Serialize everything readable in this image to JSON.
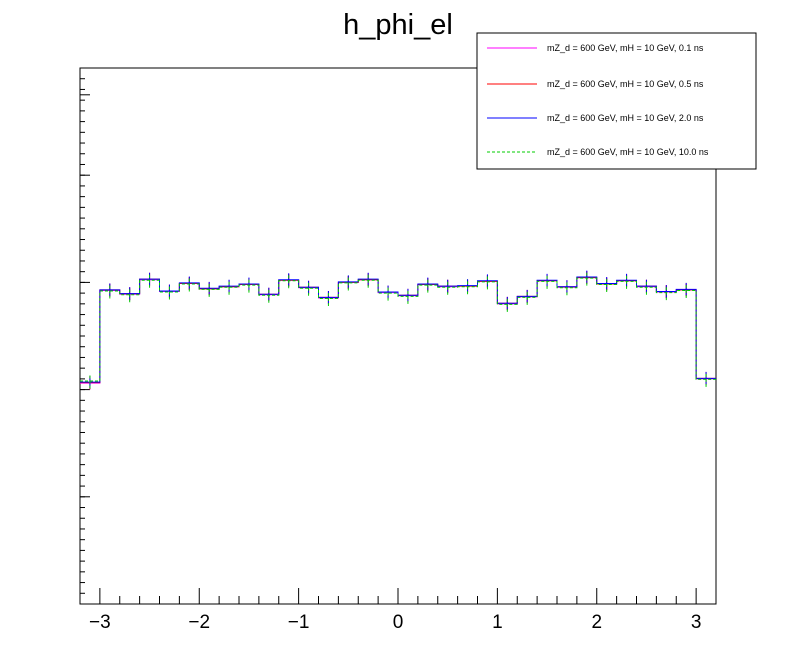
{
  "chart_data": {
    "type": "line",
    "title": "h_phi_el",
    "xlabel": "",
    "ylabel": "",
    "xlim": [
      -3.2,
      3.2
    ],
    "ylim": [
      0,
      1.0
    ],
    "x_ticks": [
      -3,
      -2,
      -1,
      0,
      1,
      2,
      3
    ],
    "x_tick_labels": [
      "−3",
      "−2",
      "−1",
      "0",
      "1",
      "2",
      "3"
    ],
    "y_major_ticks": [
      0.2,
      0.4,
      0.6,
      0.8,
      0.95
    ],
    "legend_position": "top-right",
    "bin_edges": [
      -3.2,
      -3.0,
      -2.8,
      -2.6,
      -2.4,
      -2.2,
      -2.0,
      -1.8,
      -1.6,
      -1.4,
      -1.2,
      -1.0,
      -0.8,
      -0.6,
      -0.4,
      -0.2,
      0.0,
      0.2,
      0.4,
      0.6,
      0.8,
      1.0,
      1.2,
      1.4,
      1.6,
      1.8,
      2.0,
      2.2,
      2.4,
      2.6,
      2.8,
      3.0,
      3.2
    ],
    "series": [
      {
        "name": "mZ_d = 600 GeV, mH = 10 GeV, 0.1 ns",
        "color": "#ff00ff",
        "style": "solid",
        "values": [
          0.412,
          0.585,
          0.578,
          0.605,
          0.583,
          0.598,
          0.588,
          0.592,
          0.596,
          0.577,
          0.604,
          0.59,
          0.571,
          0.6,
          0.605,
          0.581,
          0.575,
          0.596,
          0.592,
          0.593,
          0.602,
          0.56,
          0.573,
          0.603,
          0.591,
          0.609,
          0.597,
          0.603,
          0.592,
          0.582,
          0.586,
          0.42
        ],
        "errors": [
          0.012,
          0.012,
          0.012,
          0.012,
          0.012,
          0.012,
          0.012,
          0.012,
          0.012,
          0.012,
          0.012,
          0.012,
          0.012,
          0.012,
          0.012,
          0.012,
          0.012,
          0.012,
          0.012,
          0.012,
          0.012,
          0.012,
          0.012,
          0.012,
          0.012,
          0.012,
          0.012,
          0.012,
          0.012,
          0.012,
          0.012,
          0.012
        ]
      },
      {
        "name": "mZ_d = 600 GeV, mH = 10 GeV, 0.5 ns",
        "color": "#ff0000",
        "style": "solid",
        "values": [
          0.413,
          0.586,
          0.579,
          0.606,
          0.584,
          0.598,
          0.588,
          0.592,
          0.596,
          0.578,
          0.604,
          0.591,
          0.572,
          0.6,
          0.605,
          0.582,
          0.576,
          0.596,
          0.593,
          0.593,
          0.602,
          0.561,
          0.574,
          0.603,
          0.592,
          0.609,
          0.597,
          0.603,
          0.593,
          0.583,
          0.586,
          0.421
        ],
        "errors": [
          0.012,
          0.012,
          0.012,
          0.012,
          0.012,
          0.012,
          0.012,
          0.012,
          0.012,
          0.012,
          0.012,
          0.012,
          0.012,
          0.012,
          0.012,
          0.012,
          0.012,
          0.012,
          0.012,
          0.012,
          0.012,
          0.012,
          0.012,
          0.012,
          0.012,
          0.012,
          0.012,
          0.012,
          0.012,
          0.012,
          0.012,
          0.012
        ]
      },
      {
        "name": "mZ_d = 600 GeV, mH = 10 GeV, 2.0 ns",
        "color": "#0000ff",
        "style": "solid",
        "values": [
          0.414,
          0.586,
          0.579,
          0.606,
          0.584,
          0.599,
          0.589,
          0.593,
          0.597,
          0.578,
          0.605,
          0.591,
          0.572,
          0.601,
          0.606,
          0.582,
          0.576,
          0.597,
          0.593,
          0.594,
          0.603,
          0.561,
          0.574,
          0.604,
          0.592,
          0.61,
          0.598,
          0.604,
          0.593,
          0.583,
          0.587,
          0.421
        ],
        "errors": [
          0.012,
          0.012,
          0.012,
          0.012,
          0.012,
          0.012,
          0.012,
          0.012,
          0.012,
          0.012,
          0.012,
          0.012,
          0.012,
          0.012,
          0.012,
          0.012,
          0.012,
          0.012,
          0.012,
          0.012,
          0.012,
          0.012,
          0.012,
          0.012,
          0.012,
          0.012,
          0.012,
          0.012,
          0.012,
          0.012,
          0.012,
          0.012
        ]
      },
      {
        "name": "mZ_d = 600 GeV, mH = 10 GeV, 10.0 ns",
        "color": "#00cc00",
        "style": "dashed",
        "values": [
          0.416,
          0.584,
          0.577,
          0.604,
          0.582,
          0.597,
          0.587,
          0.591,
          0.595,
          0.576,
          0.603,
          0.589,
          0.57,
          0.599,
          0.604,
          0.58,
          0.574,
          0.595,
          0.591,
          0.592,
          0.601,
          0.559,
          0.572,
          0.602,
          0.59,
          0.608,
          0.596,
          0.602,
          0.591,
          0.581,
          0.585,
          0.419
        ],
        "errors": [
          0.014,
          0.014,
          0.014,
          0.014,
          0.014,
          0.014,
          0.014,
          0.014,
          0.014,
          0.014,
          0.014,
          0.014,
          0.014,
          0.014,
          0.014,
          0.014,
          0.014,
          0.014,
          0.014,
          0.014,
          0.014,
          0.014,
          0.014,
          0.014,
          0.014,
          0.014,
          0.014,
          0.014,
          0.014,
          0.014,
          0.014,
          0.014
        ]
      }
    ]
  }
}
